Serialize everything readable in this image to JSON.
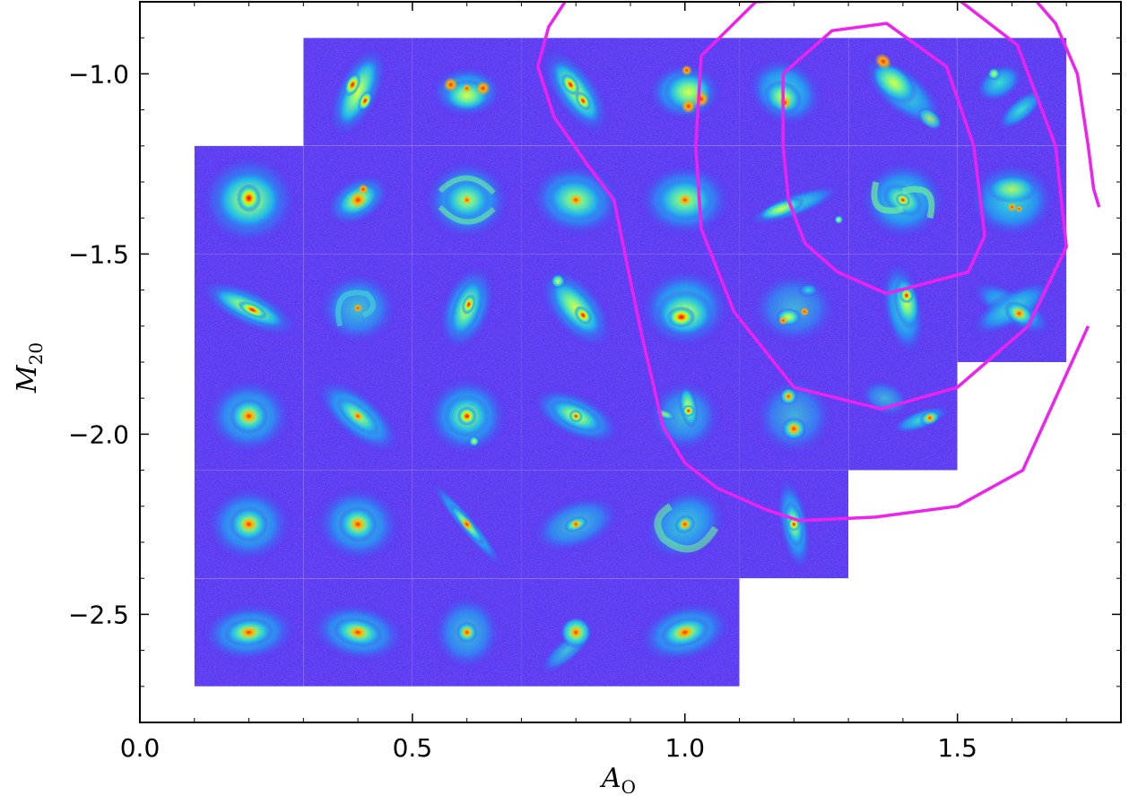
{
  "chart_data": {
    "type": "heatmap",
    "title": "",
    "xlabel": "A",
    "xlabel_sub": "O",
    "ylabel": "M",
    "ylabel_sub": "20",
    "xlim": [
      0.0,
      1.8
    ],
    "ylim": [
      -2.8,
      -0.8
    ],
    "x_ticks": [
      0.0,
      0.5,
      1.0,
      1.5
    ],
    "x_tick_labels": [
      "0.0",
      "0.5",
      "1.0",
      "1.5"
    ],
    "y_ticks": [
      -1.0,
      -1.5,
      -2.0,
      -2.5
    ],
    "y_tick_labels": [
      "−1.0",
      "−1.5",
      "−2.0",
      "−2.5"
    ],
    "grid": false,
    "legend": "none",
    "cell_width": 0.2,
    "cell_height": 0.3,
    "colormap": "rainbow",
    "background_color": "#5a2ef0",
    "contour_color": "#ee22ee",
    "cells": [
      {
        "x": 0.4,
        "y": -1.05,
        "shape": "edge-on-clumpy",
        "angle": -65
      },
      {
        "x": 0.6,
        "y": -1.05,
        "shape": "clumpy",
        "angle": 0
      },
      {
        "x": 0.8,
        "y": -1.05,
        "shape": "edge-on-clumpy",
        "angle": 55
      },
      {
        "x": 1.0,
        "y": -1.05,
        "shape": "multi-clump",
        "angle": 0
      },
      {
        "x": 1.2,
        "y": -1.05,
        "shape": "diffuse-off",
        "angle": 30
      },
      {
        "x": 1.4,
        "y": -1.05,
        "shape": "irregular-diag",
        "angle": 40
      },
      {
        "x": 1.6,
        "y": -1.05,
        "shape": "faint-arcs",
        "angle": 0
      },
      {
        "x": 0.2,
        "y": -1.35,
        "shape": "diffuse-round",
        "angle": 0
      },
      {
        "x": 0.4,
        "y": -1.35,
        "shape": "compact-clumpy",
        "angle": -30
      },
      {
        "x": 0.6,
        "y": -1.35,
        "shape": "spiral",
        "angle": 0
      },
      {
        "x": 0.8,
        "y": -1.35,
        "shape": "diffuse-wide",
        "angle": 10
      },
      {
        "x": 1.0,
        "y": -1.35,
        "shape": "diffuse-wide",
        "angle": 0
      },
      {
        "x": 1.2,
        "y": -1.35,
        "shape": "arc",
        "angle": -20
      },
      {
        "x": 1.4,
        "y": -1.35,
        "shape": "s-spiral",
        "angle": 0
      },
      {
        "x": 1.6,
        "y": -1.35,
        "shape": "irregular-arcs",
        "angle": 0
      },
      {
        "x": 0.2,
        "y": -1.65,
        "shape": "edge-on",
        "angle": 25
      },
      {
        "x": 0.4,
        "y": -1.65,
        "shape": "faint-spiral",
        "angle": 0
      },
      {
        "x": 0.6,
        "y": -1.65,
        "shape": "elongated",
        "angle": -70
      },
      {
        "x": 0.8,
        "y": -1.65,
        "shape": "elongated-clumpy",
        "angle": 50
      },
      {
        "x": 1.0,
        "y": -1.65,
        "shape": "bright-blob",
        "angle": 0
      },
      {
        "x": 1.2,
        "y": -1.65,
        "shape": "scattered-clumps",
        "angle": 0
      },
      {
        "x": 1.4,
        "y": -1.65,
        "shape": "irregular-vertical",
        "angle": 80
      },
      {
        "x": 1.6,
        "y": -1.65,
        "shape": "irregular-x",
        "angle": 30
      },
      {
        "x": 0.2,
        "y": -1.95,
        "shape": "compact",
        "angle": 0
      },
      {
        "x": 0.4,
        "y": -1.95,
        "shape": "inclined-disk",
        "angle": 40
      },
      {
        "x": 0.6,
        "y": -1.95,
        "shape": "core-halo",
        "angle": 0
      },
      {
        "x": 0.8,
        "y": -1.95,
        "shape": "inclined-clumpy",
        "angle": 25
      },
      {
        "x": 1.0,
        "y": -1.95,
        "shape": "tidal",
        "angle": 0
      },
      {
        "x": 1.2,
        "y": -1.95,
        "shape": "double",
        "angle": 0
      },
      {
        "x": 1.4,
        "y": -1.95,
        "shape": "tail",
        "angle": -20
      },
      {
        "x": 0.2,
        "y": -2.25,
        "shape": "compact",
        "angle": 0
      },
      {
        "x": 0.4,
        "y": -2.25,
        "shape": "compact",
        "angle": 10
      },
      {
        "x": 0.6,
        "y": -2.25,
        "shape": "edge-on-thin",
        "angle": 50
      },
      {
        "x": 0.8,
        "y": -2.25,
        "shape": "faint-disk",
        "angle": -20
      },
      {
        "x": 1.0,
        "y": -2.25,
        "shape": "spiral-arm",
        "angle": -30
      },
      {
        "x": 1.2,
        "y": -2.25,
        "shape": "elongated-vertical",
        "angle": 80
      },
      {
        "x": 0.2,
        "y": -2.55,
        "shape": "compact-elliptical",
        "angle": -5
      },
      {
        "x": 0.4,
        "y": -2.55,
        "shape": "compact-elliptical",
        "angle": 10
      },
      {
        "x": 0.6,
        "y": -2.55,
        "shape": "compact-faint",
        "angle": 0
      },
      {
        "x": 0.8,
        "y": -2.55,
        "shape": "compact-tail",
        "angle": 0
      },
      {
        "x": 1.0,
        "y": -2.55,
        "shape": "compact-elliptical",
        "angle": -15
      }
    ],
    "contours": [
      {
        "level": "inner",
        "points": [
          [
            1.18,
            -1.0
          ],
          [
            1.27,
            -0.88
          ],
          [
            1.37,
            -0.86
          ],
          [
            1.48,
            -0.98
          ],
          [
            1.53,
            -1.2
          ],
          [
            1.55,
            -1.45
          ],
          [
            1.52,
            -1.55
          ],
          [
            1.37,
            -1.61
          ],
          [
            1.28,
            -1.55
          ],
          [
            1.22,
            -1.47
          ],
          [
            1.19,
            -1.35
          ],
          [
            1.18,
            -1.2
          ],
          [
            1.18,
            -1.0
          ]
        ]
      },
      {
        "level": "middle",
        "points": [
          [
            1.03,
            -0.95
          ],
          [
            1.13,
            -0.8
          ],
          [
            1.49,
            -0.78
          ],
          [
            1.61,
            -0.92
          ],
          [
            1.68,
            -1.2
          ],
          [
            1.7,
            -1.48
          ],
          [
            1.63,
            -1.7
          ],
          [
            1.5,
            -1.87
          ],
          [
            1.36,
            -1.93
          ],
          [
            1.2,
            -1.87
          ],
          [
            1.09,
            -1.66
          ],
          [
            1.03,
            -1.43
          ],
          [
            1.02,
            -1.2
          ],
          [
            1.03,
            -0.95
          ]
        ]
      },
      {
        "level": "outer",
        "points": [
          [
            0.78,
            -0.8
          ],
          [
            0.75,
            -0.87
          ],
          [
            0.73,
            -0.98
          ],
          [
            0.76,
            -1.12
          ],
          [
            0.82,
            -1.25
          ],
          [
            0.87,
            -1.35
          ],
          [
            0.89,
            -1.5
          ],
          [
            0.92,
            -1.72
          ],
          [
            0.96,
            -1.98
          ],
          [
            1.0,
            -2.08
          ],
          [
            1.06,
            -2.15
          ],
          [
            1.15,
            -2.21
          ],
          [
            1.21,
            -2.24
          ],
          [
            1.35,
            -2.23
          ],
          [
            1.5,
            -2.2
          ],
          [
            1.62,
            -2.1
          ],
          [
            1.68,
            -1.9
          ],
          [
            1.74,
            -1.7
          ]
        ]
      },
      {
        "level": "outer-right",
        "points": [
          [
            1.64,
            -0.79
          ],
          [
            1.68,
            -0.86
          ],
          [
            1.72,
            -1.0
          ],
          [
            1.74,
            -1.2
          ],
          [
            1.75,
            -1.32
          ],
          [
            1.76,
            -1.37
          ]
        ]
      }
    ]
  }
}
